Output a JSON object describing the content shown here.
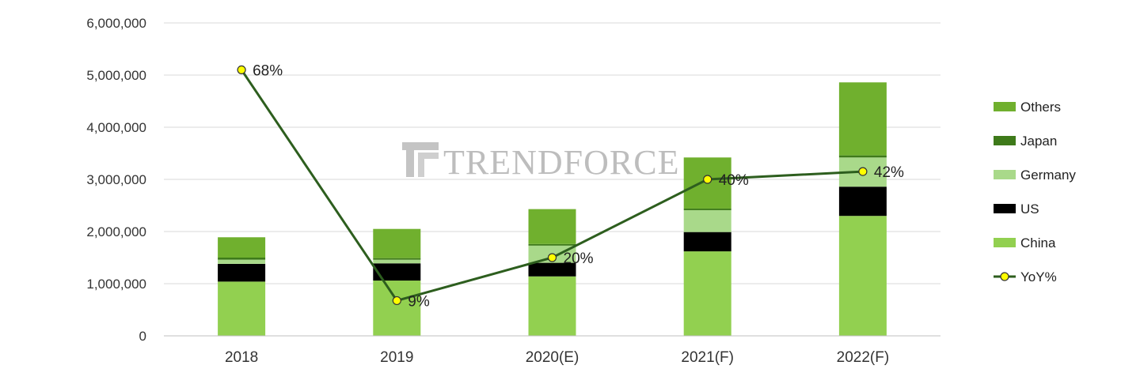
{
  "chart_data": {
    "type": "bar",
    "stacked": true,
    "categories": [
      "2018",
      "2019",
      "2020(E)",
      "2021(F)",
      "2022(F)"
    ],
    "ylim": [
      0,
      6000000
    ],
    "yticks": [
      0,
      1000000,
      2000000,
      3000000,
      4000000,
      5000000,
      6000000
    ],
    "ytick_labels": [
      "0",
      "1,000,000",
      "2,000,000",
      "3,000,000",
      "4,000,000",
      "5,000,000",
      "6,000,000"
    ],
    "grid": true,
    "legend_position": "right",
    "series": [
      {
        "name": "China",
        "color": "#92d050",
        "values": [
          1040000,
          1060000,
          1140000,
          1620000,
          2300000
        ]
      },
      {
        "name": "US",
        "color": "#000000",
        "values": [
          340000,
          330000,
          260000,
          370000,
          560000
        ]
      },
      {
        "name": "Germany",
        "color": "#a9d98a",
        "values": [
          80000,
          70000,
          330000,
          420000,
          560000
        ]
      },
      {
        "name": "Japan",
        "color": "#3e7a1a",
        "values": [
          40000,
          30000,
          30000,
          30000,
          40000
        ]
      },
      {
        "name": "Others",
        "color": "#70b02e",
        "values": [
          390000,
          560000,
          670000,
          980000,
          1400000
        ]
      }
    ],
    "line_series": {
      "name": "YoY%",
      "line_color": "#2d5e1e",
      "marker_color": "#ffff00",
      "values": [
        68,
        9,
        20,
        40,
        42
      ],
      "labels": [
        "68%",
        "9%",
        "20%",
        "40%",
        "42%"
      ]
    },
    "legend_order": [
      "Others",
      "Japan",
      "Germany",
      "US",
      "China",
      "YoY%"
    ]
  },
  "watermark": {
    "text": "TRENDFORCE"
  }
}
